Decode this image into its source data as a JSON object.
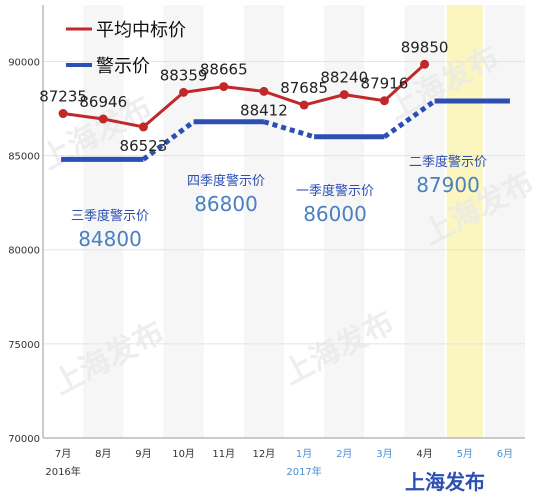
{
  "chart_data": {
    "type": "line",
    "title": "",
    "xlabel": "",
    "ylabel": "",
    "ylim": [
      70000,
      93000
    ],
    "yticks": [
      70000,
      75000,
      80000,
      85000,
      90000
    ],
    "grid": true,
    "legend_position": "top-left",
    "categories": [
      "7月",
      "8月",
      "9月",
      "10月",
      "11月",
      "12月",
      "1月",
      "2月",
      "3月",
      "4月",
      "5月",
      "6月"
    ],
    "category_colors": [
      "#333333",
      "#333333",
      "#333333",
      "#333333",
      "#333333",
      "#333333",
      "#4a90d9",
      "#4a90d9",
      "#4a90d9",
      "#333333",
      "#4a90d9",
      "#4a90d9"
    ],
    "year_labels": [
      {
        "text": "2016年",
        "at": "7月",
        "color": "#333333"
      },
      {
        "text": "2017年",
        "at": "1月",
        "color": "#4a90d9"
      }
    ],
    "highlight_category": "5月",
    "highlight_color": "#fbf5c0",
    "series": [
      {
        "name": "平均中标价",
        "color": "#c0282a",
        "type": "line",
        "values": [
          87235,
          86946,
          86523,
          88359,
          88665,
          88412,
          87685,
          88240,
          87916,
          89850,
          null,
          null
        ],
        "labels": [
          "87235",
          "86946",
          "86523",
          "88359",
          "88665",
          "88412",
          "87685",
          "88240",
          "87916",
          "89850",
          "",
          ""
        ]
      },
      {
        "name": "警示价",
        "color": "#2b4fb3",
        "type": "step",
        "values": [
          84800,
          84800,
          84800,
          86800,
          86800,
          86800,
          86000,
          86000,
          86000,
          87900,
          87900,
          87900
        ]
      }
    ],
    "warning_periods": [
      {
        "label": "三季度警示价",
        "value": "84800",
        "from": "7月",
        "to": "9月"
      },
      {
        "label": "四季度警示价",
        "value": "86800",
        "from": "10月",
        "to": "12月"
      },
      {
        "label": "一季度警示价",
        "value": "86000",
        "from": "1月",
        "to": "3月"
      },
      {
        "label": "二季度警示价",
        "value": "87900",
        "from": "4月",
        "to": "6月"
      }
    ],
    "watermark": "上海发布",
    "source_label": "上海发布"
  }
}
